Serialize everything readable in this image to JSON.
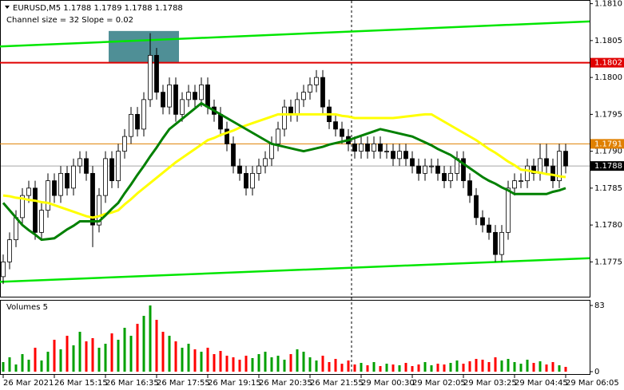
{
  "chart_data": {
    "type": "candlestick",
    "title": "EURUSD,M5  1.1788 1.1789 1.1788 1.1788",
    "subtitle": "Channel size = 32 Slope = 0.02",
    "categories": [
      "26 Mar 2021",
      null,
      null,
      null,
      null,
      null,
      null,
      null,
      "26 Mar 15:15",
      null,
      null,
      null,
      null,
      null,
      null,
      null,
      "26 Mar 16:35",
      null,
      null,
      null,
      null,
      null,
      null,
      null,
      "26 Mar 17:55",
      null,
      null,
      null,
      null,
      null,
      null,
      null,
      "26 Mar 19:15",
      null,
      null,
      null,
      null,
      null,
      null,
      null,
      "26 Mar 20:35",
      null,
      null,
      null,
      null,
      null,
      null,
      null,
      "26 Mar 21:55",
      null,
      null,
      null,
      null,
      null,
      null,
      null,
      "29 Mar 00:30",
      null,
      null,
      null,
      null,
      null,
      null,
      null,
      "29 Mar 02:05",
      null,
      null,
      null,
      null,
      null,
      null,
      null,
      "29 Mar 03:25",
      null,
      null,
      null,
      null,
      null,
      null,
      null,
      "29 Mar 04:45",
      null,
      null,
      null,
      null,
      null,
      null,
      null,
      "29 Mar 06:05"
    ],
    "open": [
      1.1773,
      1.1775,
      1.1778,
      1.1781,
      1.1784,
      1.1785,
      1.1779,
      1.1782,
      1.1786,
      1.1784,
      1.1787,
      1.1785,
      1.1788,
      1.1789,
      1.1787,
      1.178,
      1.1784,
      1.1789,
      1.1786,
      1.179,
      1.1792,
      1.1795,
      1.1793,
      1.1797,
      1.1803,
      1.1798,
      1.1796,
      1.1799,
      1.1795,
      1.1797,
      1.1798,
      1.1797,
      1.1799,
      1.1796,
      1.1795,
      1.1793,
      1.1791,
      1.1788,
      1.1787,
      1.1785,
      1.1787,
      1.1788,
      1.1789,
      1.1791,
      1.1793,
      1.1796,
      1.1795,
      1.1797,
      1.1798,
      1.1799,
      1.18,
      1.1796,
      1.1794,
      1.1793,
      1.1792,
      1.1791,
      1.179,
      1.1791,
      1.179,
      1.1791,
      1.179,
      1.179,
      1.1789,
      1.179,
      1.1789,
      1.1788,
      1.1787,
      1.1788,
      1.1788,
      1.1787,
      1.1786,
      1.1787,
      1.1789,
      1.1786,
      1.1784,
      1.1781,
      1.178,
      1.1779,
      1.1776,
      1.1779,
      1.1785,
      1.1786,
      1.1786,
      1.1788,
      1.1787,
      1.1789,
      1.1788,
      1.1786,
      1.179
    ],
    "high": [
      1.1776,
      1.1779,
      1.1782,
      1.1785,
      1.1786,
      1.1786,
      1.1783,
      1.1787,
      1.1787,
      1.1788,
      1.1788,
      1.1789,
      1.179,
      1.179,
      1.1788,
      1.1785,
      1.179,
      1.179,
      1.1791,
      1.1793,
      1.1796,
      1.1796,
      1.1798,
      1.1806,
      1.1804,
      1.1799,
      1.18,
      1.18,
      1.1798,
      1.1799,
      1.1799,
      1.18,
      1.18,
      1.1797,
      1.1796,
      1.1794,
      1.1792,
      1.1789,
      1.1788,
      1.1788,
      1.1789,
      1.179,
      1.1792,
      1.1794,
      1.1797,
      1.1797,
      1.1798,
      1.1799,
      1.18,
      1.1801,
      1.1801,
      1.1797,
      1.1795,
      1.1794,
      1.1793,
      1.1792,
      1.1792,
      1.1792,
      1.1792,
      1.1792,
      1.1791,
      1.1791,
      1.1791,
      1.1791,
      1.179,
      1.1789,
      1.1789,
      1.1789,
      1.1789,
      1.1788,
      1.1788,
      1.179,
      1.179,
      1.1787,
      1.1785,
      1.1782,
      1.1781,
      1.178,
      1.178,
      1.1786,
      1.1787,
      1.1787,
      1.1789,
      1.1789,
      1.1791,
      1.1791,
      1.1789,
      1.1791,
      1.1791
    ],
    "low": [
      1.1772,
      1.1774,
      1.1777,
      1.178,
      1.1783,
      1.1778,
      1.1778,
      1.1781,
      1.1783,
      1.1783,
      1.1784,
      1.1784,
      1.1787,
      1.1786,
      1.1777,
      1.1779,
      1.1783,
      1.1785,
      1.1785,
      1.1789,
      1.1791,
      1.1792,
      1.1792,
      1.1796,
      1.1797,
      1.1795,
      1.1795,
      1.1794,
      1.1794,
      1.1796,
      1.1796,
      1.1796,
      1.1795,
      1.1794,
      1.1792,
      1.179,
      1.1787,
      1.1786,
      1.1784,
      1.1784,
      1.1786,
      1.1787,
      1.1788,
      1.179,
      1.1792,
      1.1794,
      1.1794,
      1.1796,
      1.1797,
      1.1798,
      1.1795,
      1.1793,
      1.1792,
      1.1791,
      1.179,
      1.1789,
      1.1789,
      1.1789,
      1.1789,
      1.1789,
      1.1789,
      1.1788,
      1.1788,
      1.1788,
      1.1787,
      1.1786,
      1.1786,
      1.1787,
      1.1786,
      1.1785,
      1.1785,
      1.1786,
      1.1785,
      1.1783,
      1.178,
      1.1779,
      1.1778,
      1.1775,
      1.1775,
      1.1778,
      1.1784,
      1.1785,
      1.1785,
      1.1786,
      1.1786,
      1.1787,
      1.1785,
      1.1785,
      1.1787
    ],
    "close": [
      1.1775,
      1.1778,
      1.1781,
      1.1784,
      1.1785,
      1.1779,
      1.1782,
      1.1786,
      1.1784,
      1.1787,
      1.1785,
      1.1788,
      1.1789,
      1.1787,
      1.178,
      1.1784,
      1.1789,
      1.1786,
      1.179,
      1.1792,
      1.1795,
      1.1793,
      1.1797,
      1.1803,
      1.1798,
      1.1796,
      1.1799,
      1.1795,
      1.1797,
      1.1798,
      1.1797,
      1.1799,
      1.1796,
      1.1795,
      1.1793,
      1.1791,
      1.1788,
      1.1787,
      1.1785,
      1.1787,
      1.1788,
      1.1789,
      1.1791,
      1.1793,
      1.1796,
      1.1795,
      1.1797,
      1.1798,
      1.1799,
      1.18,
      1.1796,
      1.1794,
      1.1793,
      1.1792,
      1.1791,
      1.179,
      1.1791,
      1.179,
      1.1791,
      1.179,
      1.179,
      1.1789,
      1.179,
      1.1789,
      1.1788,
      1.1787,
      1.1788,
      1.1788,
      1.1787,
      1.1786,
      1.1787,
      1.1789,
      1.1786,
      1.1784,
      1.1781,
      1.178,
      1.1779,
      1.1776,
      1.1779,
      1.1785,
      1.1786,
      1.1786,
      1.1788,
      1.1787,
      1.1789,
      1.1788,
      1.1786,
      1.179,
      1.1788
    ],
    "moving_averages": [
      {
        "color": "#ffff00",
        "values": [
          1.1784,
          1.17839,
          1.17837,
          1.17836,
          1.17834,
          1.17833,
          1.17831,
          1.1783,
          1.17827,
          1.17824,
          1.17821,
          1.17818,
          1.17815,
          1.17812,
          1.1781,
          1.17812,
          1.17815,
          1.17817,
          1.1782,
          1.17828,
          1.17835,
          1.17843,
          1.1785,
          1.17857,
          1.17864,
          1.17871,
          1.17878,
          1.17885,
          1.17891,
          1.17897,
          1.17903,
          1.17909,
          1.17915,
          1.17918,
          1.17922,
          1.17925,
          1.17928,
          1.17932,
          1.17935,
          1.17938,
          1.17941,
          1.17944,
          1.17947,
          1.1795,
          1.1795,
          1.1795,
          1.1795,
          1.1795,
          1.1795,
          1.1795,
          1.1795,
          1.1795,
          1.1795,
          1.17948,
          1.17947,
          1.17945,
          1.17945,
          1.17945,
          1.17945,
          1.17945,
          1.17945,
          1.17945,
          1.17946,
          1.17947,
          1.17948,
          1.17949,
          1.1795,
          1.1795,
          1.17945,
          1.1794,
          1.17935,
          1.1793,
          1.17925,
          1.1792,
          1.17915,
          1.17909,
          1.17903,
          1.17898,
          1.17892,
          1.17886,
          1.17881,
          1.17875,
          1.17874,
          1.17872,
          1.17871,
          1.17869,
          1.17868,
          1.17866,
          1.17865
        ]
      },
      {
        "color": "#008000",
        "values": [
          1.1783,
          1.1782,
          1.1781,
          1.178,
          1.17793,
          1.17787,
          1.1778,
          1.17781,
          1.17782,
          1.17788,
          1.17794,
          1.17799,
          1.17805,
          1.17805,
          1.17805,
          1.17805,
          1.17813,
          1.17822,
          1.1783,
          1.17843,
          1.17855,
          1.17868,
          1.1788,
          1.17893,
          1.17905,
          1.17918,
          1.1793,
          1.17937,
          1.17944,
          1.17951,
          1.17958,
          1.17965,
          1.1796,
          1.17955,
          1.1795,
          1.17945,
          1.1794,
          1.17935,
          1.1793,
          1.17925,
          1.1792,
          1.17915,
          1.1791,
          1.17908,
          1.17906,
          1.17904,
          1.17902,
          1.179,
          1.17902,
          1.17904,
          1.17906,
          1.17909,
          1.17911,
          1.17913,
          1.17915,
          1.17918,
          1.17921,
          1.17924,
          1.17927,
          1.1793,
          1.17928,
          1.17926,
          1.17924,
          1.17922,
          1.1792,
          1.17916,
          1.17912,
          1.17908,
          1.17903,
          1.17899,
          1.17895,
          1.17889,
          1.17883,
          1.17877,
          1.17871,
          1.17865,
          1.1786,
          1.17856,
          1.17851,
          1.17847,
          1.17842,
          1.17842,
          1.17842,
          1.17842,
          1.17842,
          1.17842,
          1.17845,
          1.17847,
          1.1785
        ]
      }
    ],
    "channel_lines": [
      {
        "color": "#00e600",
        "values": [
          1.18042,
          1.18076
        ]
      },
      {
        "color": "#00e600",
        "values": [
          1.17723,
          1.17755
        ]
      }
    ],
    "highlight": {
      "color": "#4f8f96",
      "from": 17,
      "to": 28,
      "values": [
        1.1802,
        1.18063
      ]
    },
    "levels": [
      {
        "value": 1.1802,
        "color": "#e00000"
      },
      {
        "value": 1.1791,
        "color": "#e08000"
      },
      {
        "value": 1.1788,
        "color": "#000000"
      }
    ],
    "ylim": [
      1.17705,
      1.18105
    ],
    "yticks": [
      {
        "value": 1.181,
        "label": "1.1810"
      },
      1.1805,
      {
        "value": 1.18,
        "label": "1.1800"
      },
      1.1795,
      {
        "value": 1.179,
        "label": "1.1790"
      },
      1.1785,
      {
        "value": 1.178,
        "label": "1.1780"
      },
      1.1775
    ],
    "volume": {
      "label": "Volumes 5",
      "up_color": "#00a000",
      "down_color": "#ff0000",
      "ylim": [
        0,
        83
      ],
      "yticks": [
        0,
        83
      ],
      "values": [
        12,
        18,
        9,
        22,
        15,
        30,
        14,
        25,
        40,
        28,
        45,
        33,
        50,
        38,
        42,
        30,
        35,
        48,
        40,
        55,
        45,
        60,
        70,
        83,
        65,
        50,
        45,
        38,
        30,
        35,
        28,
        25,
        30,
        22,
        26,
        20,
        18,
        15,
        20,
        17,
        22,
        25,
        18,
        20,
        15,
        22,
        28,
        25,
        18,
        14,
        20,
        12,
        16,
        10,
        14,
        9,
        11,
        8,
        12,
        7,
        10,
        9,
        8,
        11,
        7,
        9,
        12,
        8,
        10,
        9,
        11,
        14,
        10,
        13,
        16,
        15,
        12,
        18,
        14,
        16,
        12,
        10,
        15,
        11,
        13,
        9,
        12,
        8,
        6
      ]
    }
  }
}
